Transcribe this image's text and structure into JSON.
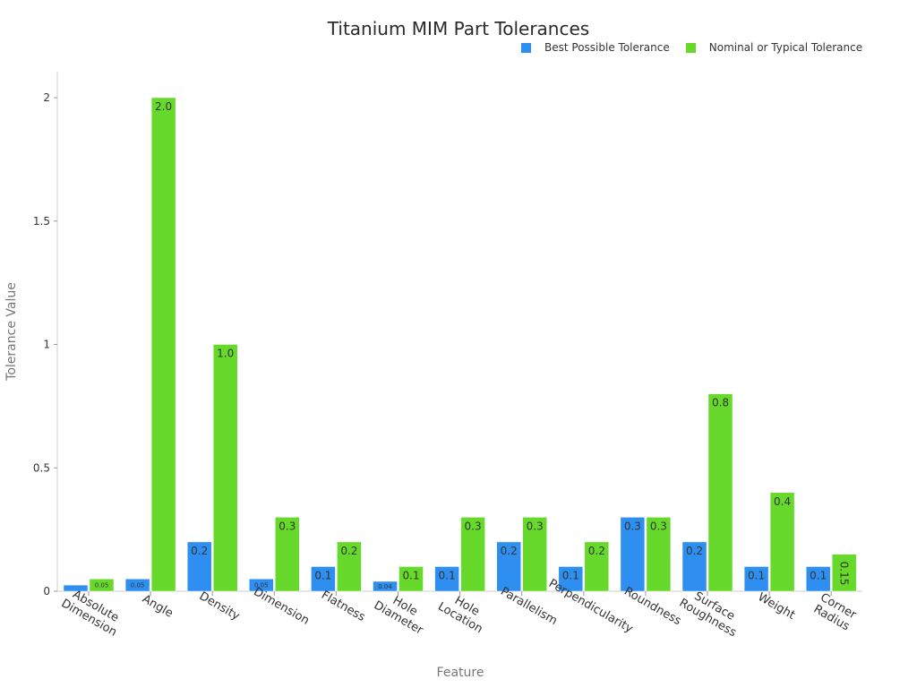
{
  "chart_data": {
    "type": "bar",
    "title": "Titanium MIM Part Tolerances",
    "xlabel": "Feature",
    "ylabel": "Tolerance Value",
    "ylim": [
      0,
      2
    ],
    "yticks": [
      "0",
      "0.5",
      "1",
      "1.5",
      "2"
    ],
    "grid": false,
    "legend_position": "top-right",
    "categories": [
      "Absolute Dimension",
      "Angle",
      "Density",
      "Dimension",
      "Flatness",
      "Hole Diameter",
      "Hole Location",
      "Parallelism",
      "Perpendicularity",
      "Roundness",
      "Surface Roughness",
      "Weight",
      "Corner Radius"
    ],
    "series": [
      {
        "name": "Best Possible Tolerance",
        "color": "#2e8ff0",
        "values": [
          0.025,
          0.05,
          0.2,
          0.05,
          0.1,
          0.04,
          0.1,
          0.2,
          0.1,
          0.3,
          0.2,
          0.1,
          0.1
        ],
        "labels": [
          "—",
          "0.05",
          "0.2",
          "0.05",
          "0.1",
          "0.04",
          "0.1",
          "0.2",
          "0.1",
          "0.3",
          "0.2",
          "0.1",
          "0.1"
        ]
      },
      {
        "name": "Nominal or Typical Tolerance",
        "color": "#66d92a",
        "values": [
          0.05,
          2.0,
          1.0,
          0.3,
          0.2,
          0.1,
          0.3,
          0.3,
          0.2,
          0.3,
          0.8,
          0.4,
          0.15
        ],
        "labels": [
          "0.05",
          "2.0",
          "1.0",
          "0.3",
          "0.2",
          "0.1",
          "0.3",
          "0.3",
          "0.2",
          "0.3",
          "0.8",
          "0.4",
          "0.15"
        ]
      }
    ]
  }
}
